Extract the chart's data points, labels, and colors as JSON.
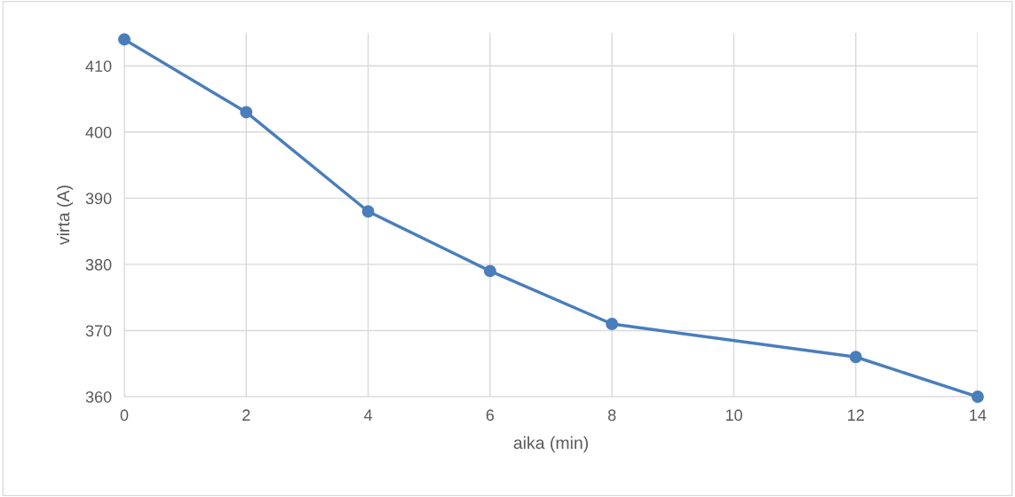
{
  "chart_data": {
    "type": "line",
    "xlabel": "aika (min)",
    "ylabel": "virta (A)",
    "x": [
      0,
      2,
      4,
      6,
      8,
      12,
      14
    ],
    "series": [
      {
        "color": "#4a7ebb",
        "values": [
          414,
          403,
          388,
          379,
          371,
          366,
          360
        ]
      }
    ],
    "xlim": [
      0,
      14
    ],
    "xticks": [
      0,
      2,
      4,
      6,
      8,
      10,
      12,
      14
    ],
    "ylim": [
      360,
      415
    ],
    "yticks": [
      360,
      370,
      380,
      390,
      400,
      410
    ],
    "grid": true,
    "marker": "circle",
    "line_style": "solid"
  }
}
